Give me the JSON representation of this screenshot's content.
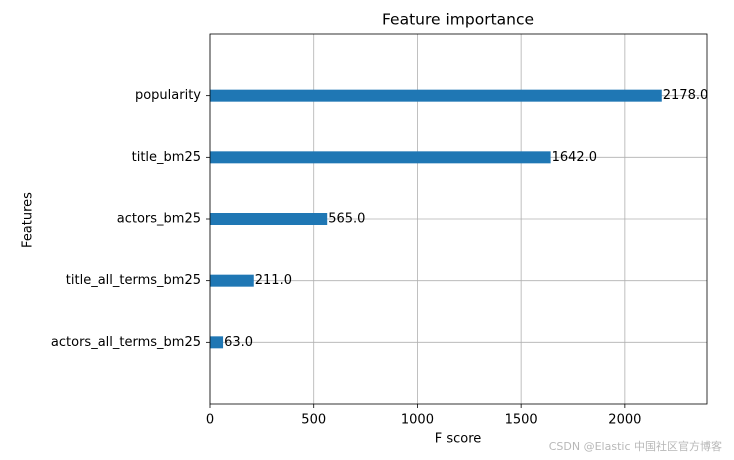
{
  "chart_data": {
    "type": "barh",
    "title": "Feature importance",
    "x_label": "F score",
    "y_label": "Features",
    "categories": [
      "popularity",
      "title_bm25",
      "actors_bm25",
      "title_all_terms_bm25",
      "actors_all_terms_bm25"
    ],
    "values": [
      2178,
      1642,
      565,
      211,
      63
    ],
    "value_labels": [
      "2178.0",
      "1642.0",
      "565.0",
      "211.0",
      "63.0"
    ],
    "color": "#1f77b4",
    "xlim": [
      0,
      2396
    ],
    "xticks": [
      0,
      500,
      1000,
      1500,
      2000
    ],
    "grid": true,
    "watermark": "CSDN @Elastic 中国社区官方博客"
  }
}
